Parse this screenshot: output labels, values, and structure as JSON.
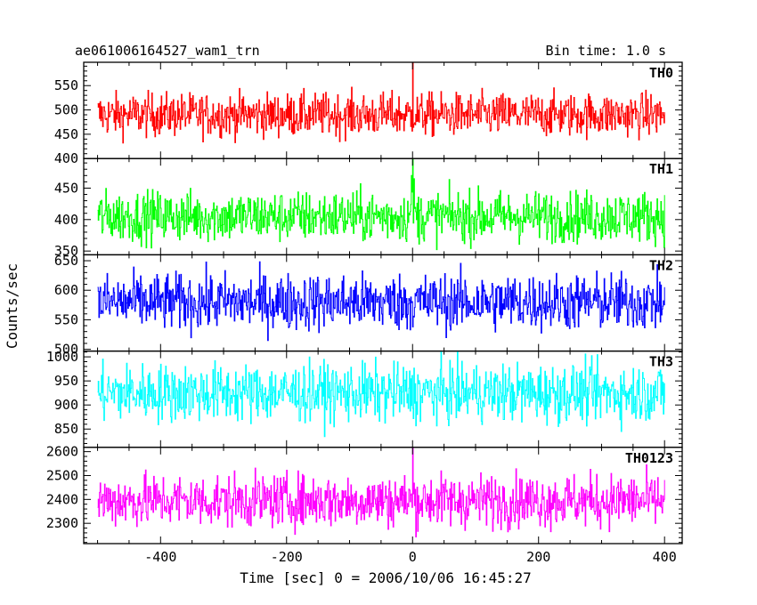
{
  "chart_data": {
    "type": "line",
    "title_left": "ae061006164527_wam1_trn",
    "title_right": "Bin time: 1.0 s",
    "xlabel": "Time [sec] 0 = 2006/10/06 16:45:27",
    "ylabel": "Counts/sec",
    "xlim": [
      -522,
      428
    ],
    "xticks": [
      -400,
      -200,
      0,
      200,
      400
    ],
    "x_data_range": [
      -500,
      400
    ],
    "bin_time_s": 1.0,
    "grid": false,
    "panels": [
      {
        "name": "TH0",
        "color": "#ff0000",
        "ylim": [
          400,
          598
        ],
        "yticks": [
          400,
          450,
          500,
          550
        ],
        "mean": 490,
        "noise": 22,
        "spikes": [
          [
            0,
            600
          ]
        ]
      },
      {
        "name": "TH1",
        "color": "#00ff00",
        "ylim": [
          344,
          497
        ],
        "yticks": [
          350,
          400,
          450
        ],
        "mean": 405,
        "noise": 20,
        "spikes": [
          [
            0,
            500
          ],
          [
            -2,
            470
          ],
          [
            2,
            465
          ]
        ]
      },
      {
        "name": "TH2",
        "color": "#0000ff",
        "ylim": [
          497,
          660
        ],
        "yticks": [
          500,
          550,
          600,
          650
        ],
        "mean": 580,
        "noise": 24,
        "spikes": []
      },
      {
        "name": "TH3",
        "color": "#00ffff",
        "ylim": [
          812,
          1012
        ],
        "yticks": [
          850,
          900,
          950,
          1000
        ],
        "mean": 925,
        "noise": 30,
        "spikes": []
      },
      {
        "name": "TH0123",
        "color": "#ff00ff",
        "ylim": [
          2215,
          2618
        ],
        "yticks": [
          2300,
          2400,
          2500,
          2600
        ],
        "mean": 2395,
        "noise": 55,
        "spikes": [
          [
            0,
            2620
          ]
        ]
      }
    ]
  }
}
